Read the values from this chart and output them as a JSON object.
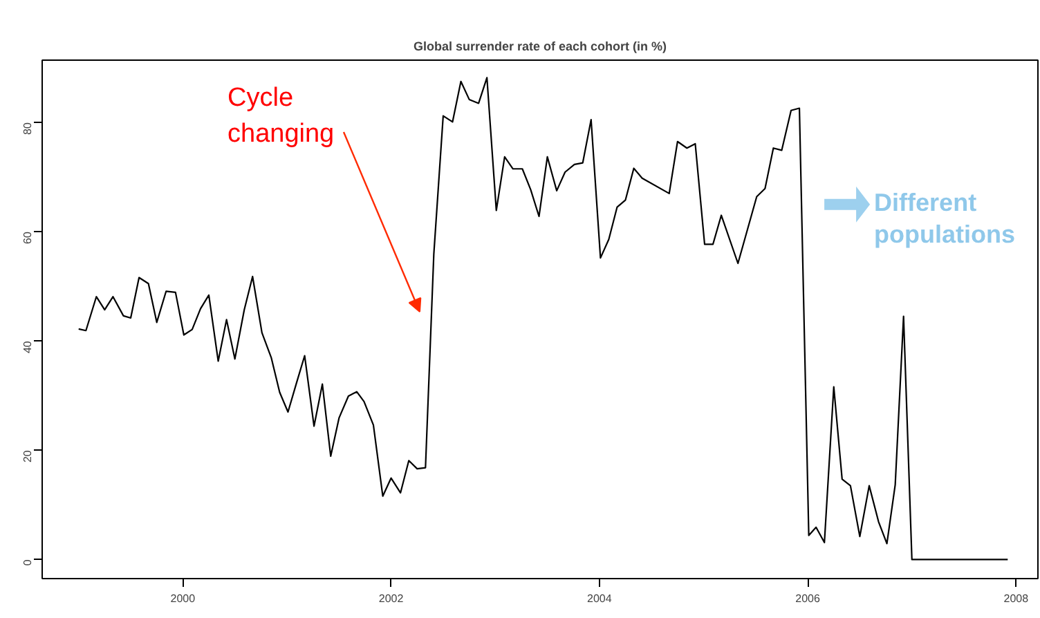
{
  "chart_data": {
    "type": "line",
    "title": "Global surrender rate of each cohort (in %)",
    "x": [
      1999.0,
      1999.07,
      1999.17,
      1999.25,
      1999.33,
      1999.43,
      1999.5,
      1999.58,
      1999.67,
      1999.75,
      1999.84,
      1999.93,
      2000.01,
      2000.09,
      2000.17,
      2000.25,
      2000.34,
      2000.42,
      2000.5,
      2000.59,
      2000.67,
      2000.76,
      2000.85,
      2000.93,
      2001.01,
      2001.09,
      2001.17,
      2001.26,
      2001.34,
      2001.42,
      2001.5,
      2001.59,
      2001.67,
      2001.74,
      2001.83,
      2001.92,
      2002.0,
      2002.09,
      2002.17,
      2002.25,
      2002.33,
      2002.41,
      2002.5,
      2002.59,
      2002.67,
      2002.75,
      2002.84,
      2002.92,
      2003.01,
      2003.09,
      2003.17,
      2003.26,
      2003.34,
      2003.42,
      2003.5,
      2003.59,
      2003.67,
      2003.76,
      2003.84,
      2003.92,
      2004.01,
      2004.09,
      2004.17,
      2004.25,
      2004.33,
      2004.41,
      2004.67,
      2004.75,
      2004.84,
      2004.92,
      2005.01,
      2005.09,
      2005.17,
      2005.33,
      2005.51,
      2005.59,
      2005.67,
      2005.75,
      2005.84,
      2005.92,
      2006.01,
      2006.08,
      2006.16,
      2006.25,
      2006.33,
      2006.41,
      2006.5,
      2006.59,
      2006.68,
      2006.76,
      2006.84,
      2006.92,
      2007.0,
      2007.92
    ],
    "series": [
      {
        "color": "#000000",
        "values": [
          42.2,
          41.9,
          48.1,
          45.7,
          48.1,
          44.6,
          44.2,
          51.6,
          50.5,
          43.4,
          49.1,
          48.9,
          41.1,
          42.1,
          45.9,
          48.4,
          36.3,
          43.9,
          36.7,
          45.7,
          51.8,
          41.5,
          36.9,
          30.6,
          27.0,
          32.2,
          37.3,
          24.4,
          32.1,
          18.9,
          25.9,
          29.9,
          30.7,
          28.9,
          24.6,
          11.6,
          14.9,
          12.2,
          18.1,
          16.6,
          16.8,
          55.9,
          81.2,
          80.1,
          87.5,
          84.2,
          83.5,
          88.2,
          63.9,
          73.7,
          71.5,
          71.5,
          67.7,
          62.8,
          73.7,
          67.5,
          70.9,
          72.3,
          72.6,
          80.5,
          55.2,
          58.6,
          64.5,
          65.8,
          71.6,
          69.8,
          67.0,
          76.5,
          75.3,
          76.1,
          57.7,
          57.7,
          63.0,
          54.2,
          66.4,
          67.9,
          75.3,
          74.9,
          82.2,
          82.6,
          4.4,
          5.9,
          3.1,
          31.6,
          14.7,
          13.5,
          4.2,
          13.5,
          6.9,
          2.9,
          13.7,
          44.5,
          0,
          0
        ]
      }
    ],
    "xlim": [
      1998.65,
      2008.21
    ],
    "ylim": [
      -3.5,
      91.4
    ],
    "xticks": [
      2000,
      2002,
      2004,
      2006,
      2008
    ],
    "yticks": [
      0,
      20,
      40,
      60,
      80
    ],
    "annotations": [
      "Cycle\nchanging",
      {
        "text": "Different\npopulations",
        "x": 2006.0,
        "y": 65
      }
    ],
    "grid": false
  }
}
